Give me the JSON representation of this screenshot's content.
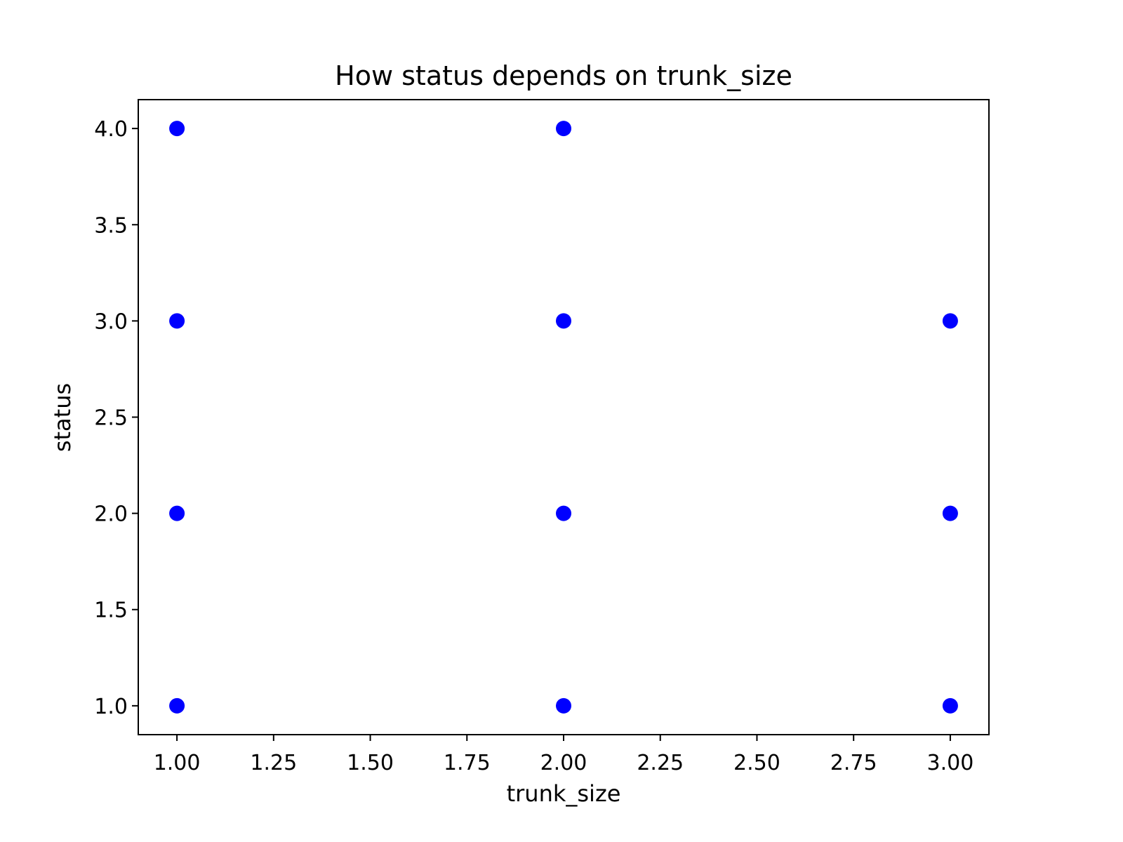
{
  "chart_data": {
    "type": "scatter",
    "title": "How status depends on trunk_size",
    "xlabel": "trunk_size",
    "ylabel": "status",
    "xlim": [
      0.9,
      3.1
    ],
    "ylim": [
      0.85,
      4.15
    ],
    "xticks": [
      1.0,
      1.25,
      1.5,
      1.75,
      2.0,
      2.25,
      2.5,
      2.75,
      3.0
    ],
    "xtick_labels": [
      "1.00",
      "1.25",
      "1.50",
      "1.75",
      "2.00",
      "2.25",
      "2.50",
      "2.75",
      "3.00"
    ],
    "yticks": [
      1.0,
      1.5,
      2.0,
      2.5,
      3.0,
      3.5,
      4.0
    ],
    "ytick_labels": [
      "1.0",
      "1.5",
      "2.0",
      "2.5",
      "3.0",
      "3.5",
      "4.0"
    ],
    "grid": false,
    "marker_color": "#0000ff",
    "points": [
      {
        "x": 1,
        "y": 4
      },
      {
        "x": 1,
        "y": 3
      },
      {
        "x": 1,
        "y": 2
      },
      {
        "x": 1,
        "y": 1
      },
      {
        "x": 2,
        "y": 4
      },
      {
        "x": 2,
        "y": 3
      },
      {
        "x": 2,
        "y": 2
      },
      {
        "x": 2,
        "y": 1
      },
      {
        "x": 3,
        "y": 3
      },
      {
        "x": 3,
        "y": 2
      },
      {
        "x": 3,
        "y": 1
      }
    ]
  }
}
